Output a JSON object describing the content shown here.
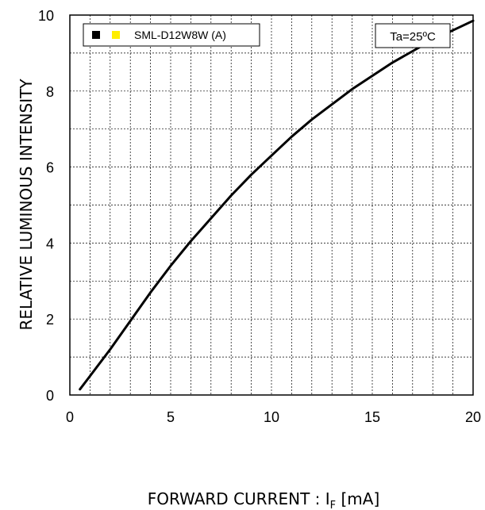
{
  "chart_data": {
    "type": "line",
    "title": "",
    "xlabel": "FORWARD CURRENT : I",
    "xlabel_subscript": "F",
    "xlabel_unit": " [mA]",
    "ylabel": "RELATIVE LUMINOUS INTENSITY",
    "xlim": [
      0,
      20
    ],
    "ylim": [
      0,
      10
    ],
    "x_ticks": [
      0,
      5,
      10,
      15,
      20
    ],
    "y_ticks": [
      0,
      2,
      4,
      6,
      8,
      10
    ],
    "x_tick_labels": [
      "0",
      "5",
      "10",
      "15",
      "20"
    ],
    "y_tick_labels": [
      "0",
      "2",
      "4",
      "6",
      "8",
      "10"
    ],
    "grid": true,
    "legend": {
      "placement": "top-left",
      "label": "SML-D12W8W (A)",
      "swatch_colors": [
        "#000000",
        "#ffee00"
      ]
    },
    "annotation": "Ta=25ºC",
    "series": [
      {
        "name": "SML-D12W8W (A)",
        "color": "#000000",
        "x": [
          0.5,
          1,
          2,
          3,
          4,
          5,
          6,
          7,
          8,
          9,
          10,
          11,
          12,
          13,
          14,
          15,
          16,
          17,
          18,
          19,
          20
        ],
        "y": [
          0.15,
          0.5,
          1.2,
          1.95,
          2.7,
          3.4,
          4.05,
          4.65,
          5.25,
          5.8,
          6.3,
          6.8,
          7.25,
          7.65,
          8.05,
          8.4,
          8.75,
          9.05,
          9.35,
          9.6,
          9.85
        ]
      }
    ]
  }
}
